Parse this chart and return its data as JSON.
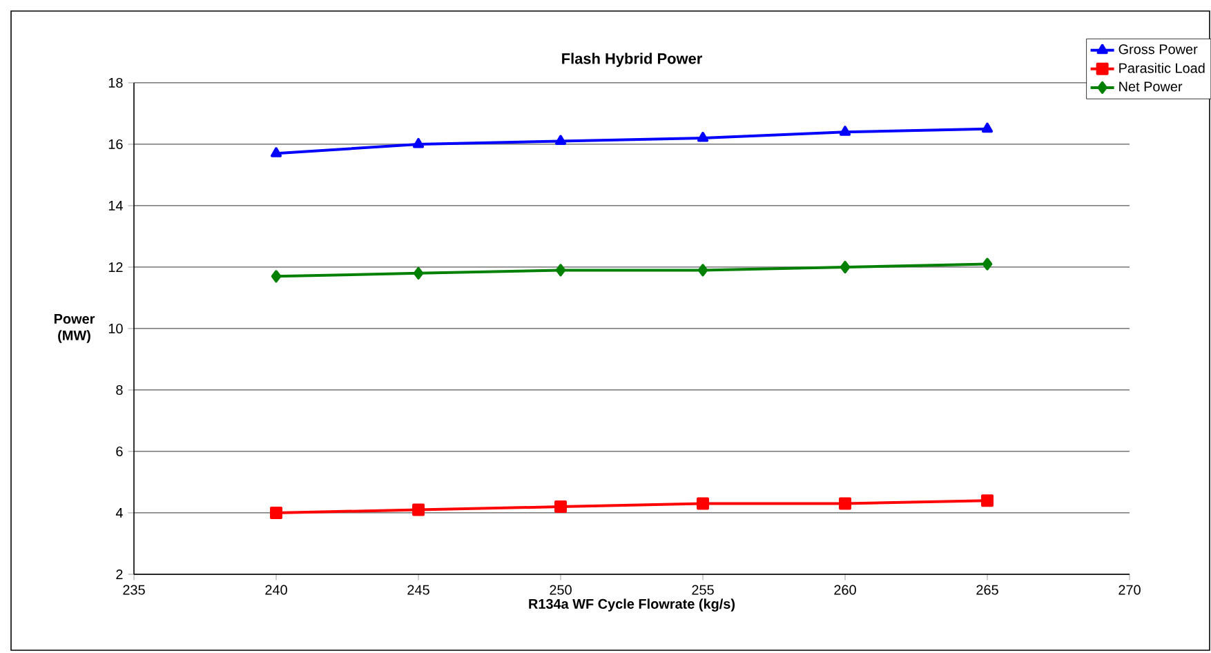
{
  "chart_data": {
    "type": "line",
    "title": "Flash Hybrid Power",
    "xlabel": "R134a WF Cycle Flowrate (kg/s)",
    "ylabel": "Power (MW)",
    "x": [
      240,
      245,
      250,
      255,
      260,
      265
    ],
    "series": [
      {
        "name": "Gross Power",
        "color": "#0000ff",
        "marker": "triangle",
        "values": [
          15.7,
          16.0,
          16.1,
          16.2,
          16.4,
          16.5
        ]
      },
      {
        "name": "Parasitic Load",
        "color": "#ff0000",
        "marker": "square",
        "values": [
          4.0,
          4.1,
          4.2,
          4.3,
          4.3,
          4.4
        ]
      },
      {
        "name": "Net Power",
        "color": "#008000",
        "marker": "diamond",
        "values": [
          11.7,
          11.8,
          11.9,
          11.9,
          12.0,
          12.1
        ]
      }
    ],
    "xlim": [
      235,
      270
    ],
    "xticks": [
      235,
      240,
      245,
      250,
      255,
      260,
      265,
      270
    ],
    "ylim": [
      2,
      18
    ],
    "yticks": [
      2,
      4,
      6,
      8,
      10,
      12,
      14,
      16,
      18
    ],
    "grid": "y",
    "legend": "top right",
    "line_style": "solid"
  }
}
